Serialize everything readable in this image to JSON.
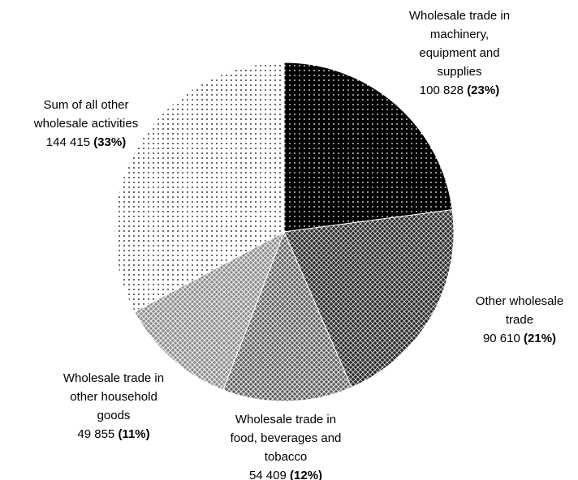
{
  "chart_data": {
    "type": "pie",
    "categories": [
      "Wholesale trade in\nmachinery,\nequipment and\nsupplies",
      "Other wholesale\ntrade",
      "Wholesale trade in\nfood, beverages and\ntobacco",
      "Wholesale trade in\nother household\ngoods",
      "Sum of all other\nwholesale activities"
    ],
    "values": [
      100828,
      90610,
      54409,
      49855,
      144415
    ],
    "value_labels": [
      "100 828",
      "90 610",
      "54 409",
      "49 855",
      "144 415"
    ],
    "percent_labels": [
      "(23%)",
      "(21%)",
      "(12%)",
      "(11%)",
      "(33%)"
    ],
    "colors": [
      "#000000",
      "#2b2b2b",
      "#5a5a5a",
      "#8a8a8a",
      "#ffffff"
    ]
  }
}
